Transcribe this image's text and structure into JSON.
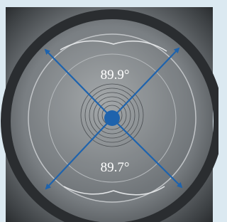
{
  "annotations": {
    "angle_top": "89.9°",
    "angle_bottom": "89.7°"
  }
}
